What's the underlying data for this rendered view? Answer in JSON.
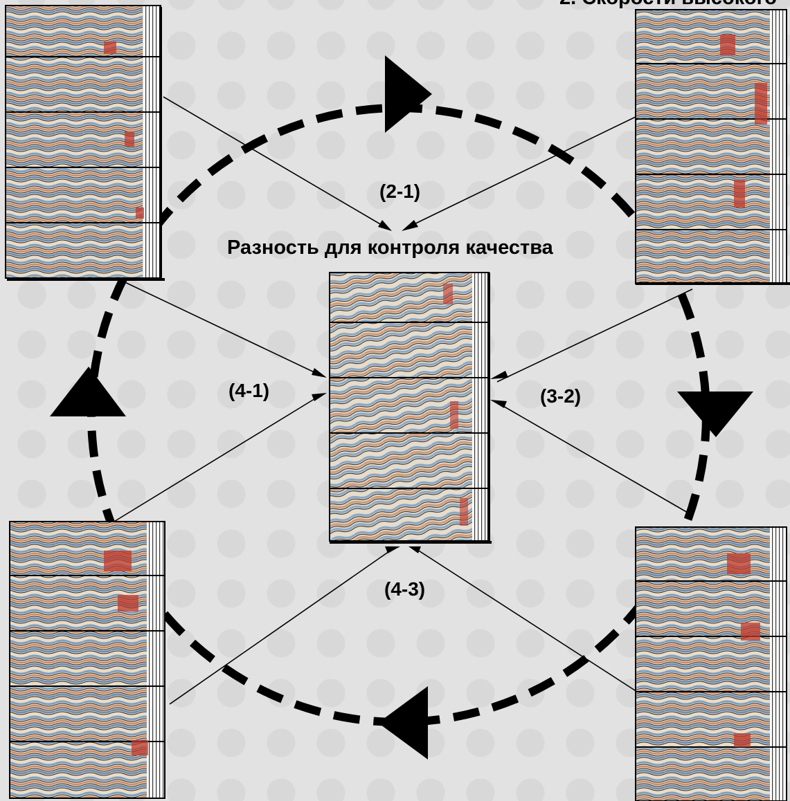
{
  "title": "Разность для контроля качества",
  "top_right_caption": "2. Скорости высокого",
  "differences": {
    "d21": "(2-1)",
    "d32": "(3-2)",
    "d41": "(4-1)",
    "d43": "(4-3)"
  },
  "colors": {
    "background": "#e2e2e2",
    "arrow": "#000000",
    "trace_red": "#c0392b",
    "trace_blue": "#7f9fbf"
  }
}
